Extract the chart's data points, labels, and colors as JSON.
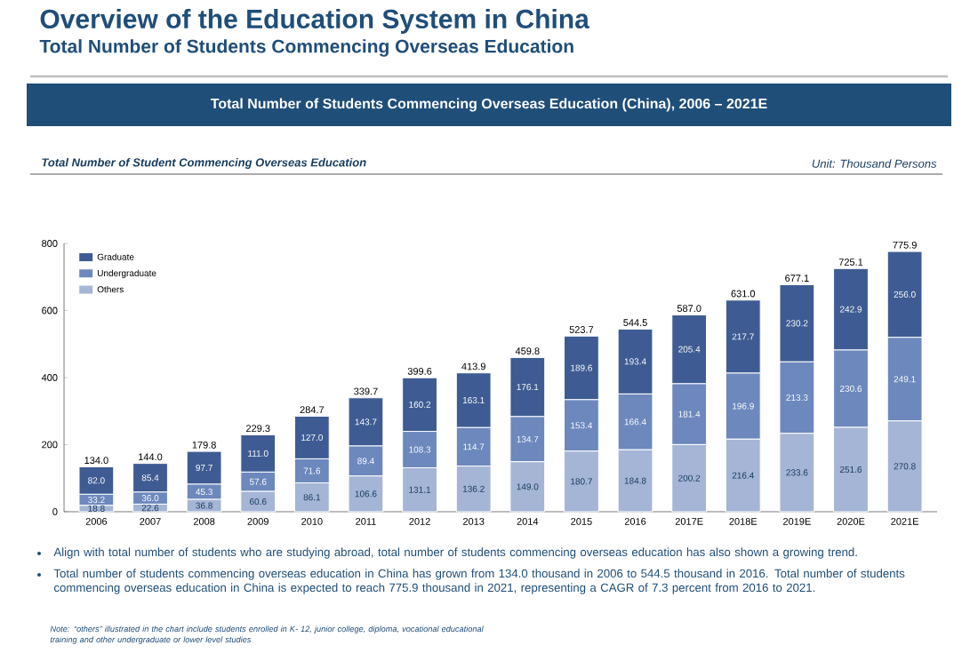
{
  "chart_data": {
    "type": "bar",
    "stacked": true,
    "title": "Overview of the Education System in China",
    "subtitle": "Total Number of Students Commencing Overseas Education",
    "annotations": [
      "Total Number of Students Commencing Overseas Education (China), 2006 – 2021E",
      "Total Number of Student Commencing Overseas Education",
      "Unit: Thousand Persons",
      "Align with total number of students who are studying abroad, total number of students commencing overseas education has also shown a growing trend.",
      "Total number of students commencing overseas education in China has grown from 134.0 thousand in 2006 to 544.5 thousand in 2016. Total number of students commencing overseas education in China is expected to reach 775.9 thousand in 2021, representing a CAGR of 7.3 percent from 2016 to 2021.",
      "Note: “others” illustrated in the chart include students enrolled in K- 12, junior college, diploma, vocational educational training and other undergraduate or lower level studies"
    ],
    "categories": [
      "2006",
      "2007",
      "2008",
      "2009",
      "2010",
      "2011",
      "2012",
      "2013",
      "2014",
      "2015",
      "2016",
      "2017E",
      "2018E",
      "2019E",
      "2020E",
      "2021E"
    ],
    "series": [
      {
        "name": "Others",
        "color": "#a5b5d6",
        "values": [
          18.8,
          22.6,
          36.8,
          60.6,
          86.1,
          106.6,
          131.1,
          136.2,
          149.0,
          180.7,
          184.8,
          200.2,
          216.4,
          233.6,
          251.6,
          270.8
        ],
        "value_labels": [
          "18.8",
          "22.6",
          "36.8",
          "60.6",
          "86.1",
          "106.6",
          "131.1",
          "136.2",
          "149.0",
          "180.7",
          "184.8",
          "200.2",
          "216.4",
          "233.6",
          "251.6",
          "270.8"
        ]
      },
      {
        "name": "Undergraduate",
        "color": "#6c88bd",
        "values": [
          33.2,
          36.0,
          45.3,
          57.6,
          71.6,
          89.4,
          108.3,
          114.7,
          134.7,
          153.4,
          166.4,
          181.4,
          196.9,
          213.3,
          230.6,
          249.1
        ],
        "value_labels": [
          "33.2",
          "36.0",
          "45.3",
          "57.6",
          "71.6",
          "89.4",
          "108.3",
          "114.7",
          "134.7",
          "153.4",
          "166.4",
          "181.4",
          "196.9",
          "213.3",
          "230.6",
          "249.1"
        ]
      },
      {
        "name": "Graduate",
        "color": "#3e5c93",
        "values": [
          82.0,
          85.4,
          97.7,
          111.0,
          127.0,
          143.7,
          160.2,
          163.1,
          176.1,
          189.6,
          193.4,
          205.4,
          217.7,
          230.2,
          242.9,
          256.0
        ],
        "value_labels": [
          "82.0",
          "85.4",
          "97.7",
          "111.0",
          "127.0",
          "143.7",
          "160.2",
          "163.1",
          "176.1",
          "189.6",
          "193.4",
          "205.4",
          "217.7",
          "230.2",
          "242.9",
          "256.0"
        ]
      }
    ],
    "totals": [
      "134.0",
      "144.0",
      "179.8",
      "229.3",
      "284.7",
      "339.7",
      "399.6",
      "413.9",
      "459.8",
      "523.7",
      "544.5",
      "587.0",
      "631.0",
      "677.1",
      "725.1",
      "775.9"
    ],
    "ylim": [
      0,
      800
    ],
    "yticks": [
      0,
      200,
      400,
      600,
      800
    ],
    "legend": "top left",
    "grid": false
  }
}
